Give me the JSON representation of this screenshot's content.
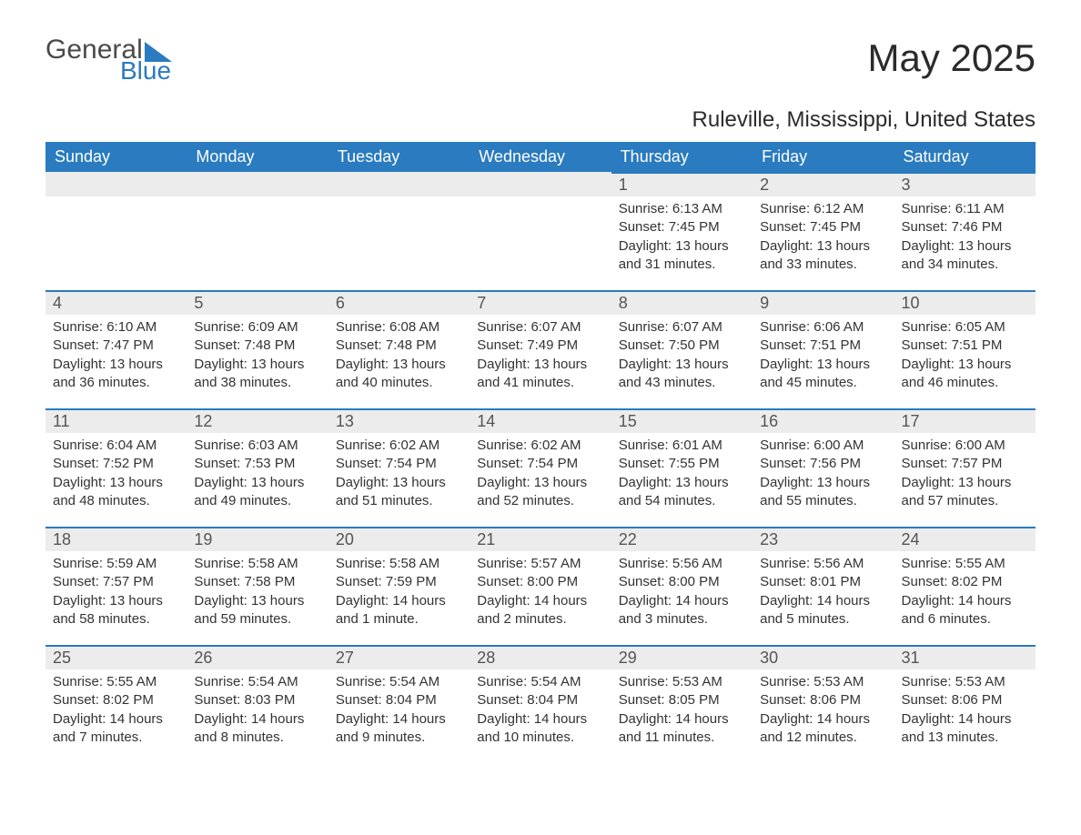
{
  "brand": {
    "general": "General",
    "blue": "Blue",
    "accent_color": "#2a7bbf"
  },
  "title": "May 2025",
  "location": "Ruleville, Mississippi, United States",
  "colors": {
    "header_bg": "#2a7bbf",
    "header_text": "#ffffff",
    "daynum_bg": "#ececec",
    "daynum_border": "#2a7bbf",
    "body_text": "#333333",
    "background": "#ffffff"
  },
  "typography": {
    "title_fontsize": 42,
    "location_fontsize": 24,
    "header_fontsize": 18,
    "daynum_fontsize": 18,
    "cell_fontsize": 15
  },
  "calendar": {
    "type": "table",
    "columns": [
      "Sunday",
      "Monday",
      "Tuesday",
      "Wednesday",
      "Thursday",
      "Friday",
      "Saturday"
    ],
    "weeks": [
      [
        null,
        null,
        null,
        null,
        {
          "day": "1",
          "sunrise": "Sunrise: 6:13 AM",
          "sunset": "Sunset: 7:45 PM",
          "daylight": "Daylight: 13 hours and 31 minutes."
        },
        {
          "day": "2",
          "sunrise": "Sunrise: 6:12 AM",
          "sunset": "Sunset: 7:45 PM",
          "daylight": "Daylight: 13 hours and 33 minutes."
        },
        {
          "day": "3",
          "sunrise": "Sunrise: 6:11 AM",
          "sunset": "Sunset: 7:46 PM",
          "daylight": "Daylight: 13 hours and 34 minutes."
        }
      ],
      [
        {
          "day": "4",
          "sunrise": "Sunrise: 6:10 AM",
          "sunset": "Sunset: 7:47 PM",
          "daylight": "Daylight: 13 hours and 36 minutes."
        },
        {
          "day": "5",
          "sunrise": "Sunrise: 6:09 AM",
          "sunset": "Sunset: 7:48 PM",
          "daylight": "Daylight: 13 hours and 38 minutes."
        },
        {
          "day": "6",
          "sunrise": "Sunrise: 6:08 AM",
          "sunset": "Sunset: 7:48 PM",
          "daylight": "Daylight: 13 hours and 40 minutes."
        },
        {
          "day": "7",
          "sunrise": "Sunrise: 6:07 AM",
          "sunset": "Sunset: 7:49 PM",
          "daylight": "Daylight: 13 hours and 41 minutes."
        },
        {
          "day": "8",
          "sunrise": "Sunrise: 6:07 AM",
          "sunset": "Sunset: 7:50 PM",
          "daylight": "Daylight: 13 hours and 43 minutes."
        },
        {
          "day": "9",
          "sunrise": "Sunrise: 6:06 AM",
          "sunset": "Sunset: 7:51 PM",
          "daylight": "Daylight: 13 hours and 45 minutes."
        },
        {
          "day": "10",
          "sunrise": "Sunrise: 6:05 AM",
          "sunset": "Sunset: 7:51 PM",
          "daylight": "Daylight: 13 hours and 46 minutes."
        }
      ],
      [
        {
          "day": "11",
          "sunrise": "Sunrise: 6:04 AM",
          "sunset": "Sunset: 7:52 PM",
          "daylight": "Daylight: 13 hours and 48 minutes."
        },
        {
          "day": "12",
          "sunrise": "Sunrise: 6:03 AM",
          "sunset": "Sunset: 7:53 PM",
          "daylight": "Daylight: 13 hours and 49 minutes."
        },
        {
          "day": "13",
          "sunrise": "Sunrise: 6:02 AM",
          "sunset": "Sunset: 7:54 PM",
          "daylight": "Daylight: 13 hours and 51 minutes."
        },
        {
          "day": "14",
          "sunrise": "Sunrise: 6:02 AM",
          "sunset": "Sunset: 7:54 PM",
          "daylight": "Daylight: 13 hours and 52 minutes."
        },
        {
          "day": "15",
          "sunrise": "Sunrise: 6:01 AM",
          "sunset": "Sunset: 7:55 PM",
          "daylight": "Daylight: 13 hours and 54 minutes."
        },
        {
          "day": "16",
          "sunrise": "Sunrise: 6:00 AM",
          "sunset": "Sunset: 7:56 PM",
          "daylight": "Daylight: 13 hours and 55 minutes."
        },
        {
          "day": "17",
          "sunrise": "Sunrise: 6:00 AM",
          "sunset": "Sunset: 7:57 PM",
          "daylight": "Daylight: 13 hours and 57 minutes."
        }
      ],
      [
        {
          "day": "18",
          "sunrise": "Sunrise: 5:59 AM",
          "sunset": "Sunset: 7:57 PM",
          "daylight": "Daylight: 13 hours and 58 minutes."
        },
        {
          "day": "19",
          "sunrise": "Sunrise: 5:58 AM",
          "sunset": "Sunset: 7:58 PM",
          "daylight": "Daylight: 13 hours and 59 minutes."
        },
        {
          "day": "20",
          "sunrise": "Sunrise: 5:58 AM",
          "sunset": "Sunset: 7:59 PM",
          "daylight": "Daylight: 14 hours and 1 minute."
        },
        {
          "day": "21",
          "sunrise": "Sunrise: 5:57 AM",
          "sunset": "Sunset: 8:00 PM",
          "daylight": "Daylight: 14 hours and 2 minutes."
        },
        {
          "day": "22",
          "sunrise": "Sunrise: 5:56 AM",
          "sunset": "Sunset: 8:00 PM",
          "daylight": "Daylight: 14 hours and 3 minutes."
        },
        {
          "day": "23",
          "sunrise": "Sunrise: 5:56 AM",
          "sunset": "Sunset: 8:01 PM",
          "daylight": "Daylight: 14 hours and 5 minutes."
        },
        {
          "day": "24",
          "sunrise": "Sunrise: 5:55 AM",
          "sunset": "Sunset: 8:02 PM",
          "daylight": "Daylight: 14 hours and 6 minutes."
        }
      ],
      [
        {
          "day": "25",
          "sunrise": "Sunrise: 5:55 AM",
          "sunset": "Sunset: 8:02 PM",
          "daylight": "Daylight: 14 hours and 7 minutes."
        },
        {
          "day": "26",
          "sunrise": "Sunrise: 5:54 AM",
          "sunset": "Sunset: 8:03 PM",
          "daylight": "Daylight: 14 hours and 8 minutes."
        },
        {
          "day": "27",
          "sunrise": "Sunrise: 5:54 AM",
          "sunset": "Sunset: 8:04 PM",
          "daylight": "Daylight: 14 hours and 9 minutes."
        },
        {
          "day": "28",
          "sunrise": "Sunrise: 5:54 AM",
          "sunset": "Sunset: 8:04 PM",
          "daylight": "Daylight: 14 hours and 10 minutes."
        },
        {
          "day": "29",
          "sunrise": "Sunrise: 5:53 AM",
          "sunset": "Sunset: 8:05 PM",
          "daylight": "Daylight: 14 hours and 11 minutes."
        },
        {
          "day": "30",
          "sunrise": "Sunrise: 5:53 AM",
          "sunset": "Sunset: 8:06 PM",
          "daylight": "Daylight: 14 hours and 12 minutes."
        },
        {
          "day": "31",
          "sunrise": "Sunrise: 5:53 AM",
          "sunset": "Sunset: 8:06 PM",
          "daylight": "Daylight: 14 hours and 13 minutes."
        }
      ]
    ]
  }
}
